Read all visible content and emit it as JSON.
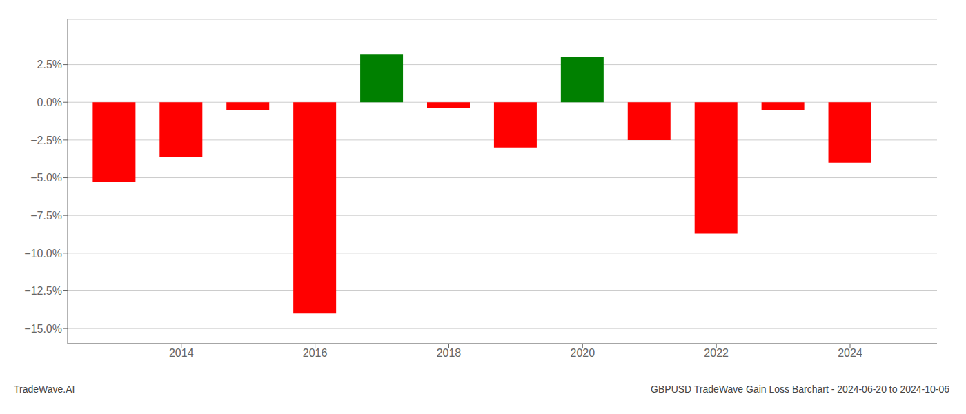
{
  "chart_data": {
    "type": "bar",
    "x": [
      2013,
      2014,
      2015,
      2016,
      2017,
      2018,
      2019,
      2020,
      2021,
      2022,
      2023,
      2024
    ],
    "values": [
      -0.053,
      -0.036,
      -0.005,
      -0.14,
      0.032,
      -0.004,
      -0.03,
      0.03,
      -0.025,
      -0.087,
      -0.005,
      -0.04
    ],
    "colors": [
      "#ff0000",
      "#ff0000",
      "#ff0000",
      "#ff0000",
      "#008000",
      "#ff0000",
      "#ff0000",
      "#008000",
      "#ff0000",
      "#ff0000",
      "#ff0000",
      "#ff0000"
    ],
    "xlim": [
      2012.3,
      2025.3
    ],
    "xticks": [
      2014,
      2016,
      2018,
      2020,
      2022,
      2024
    ],
    "ylim": [
      -0.16,
      0.055
    ],
    "yticks": [
      {
        "value": -0.15,
        "label": "−15.0%"
      },
      {
        "value": -0.125,
        "label": "−12.5%"
      },
      {
        "value": -0.1,
        "label": "−10.0%"
      },
      {
        "value": -0.075,
        "label": "−7.5%"
      },
      {
        "value": -0.05,
        "label": "−5.0%"
      },
      {
        "value": -0.025,
        "label": "−2.5%"
      },
      {
        "value": 0.0,
        "label": "0.0%"
      },
      {
        "value": 0.025,
        "label": "2.5%"
      }
    ],
    "grid": true,
    "annotations": [
      "TradeWave.AI",
      "GBPUSD TradeWave Gain Loss Barchart - 2024-06-20 to 2024-10-06"
    ]
  }
}
